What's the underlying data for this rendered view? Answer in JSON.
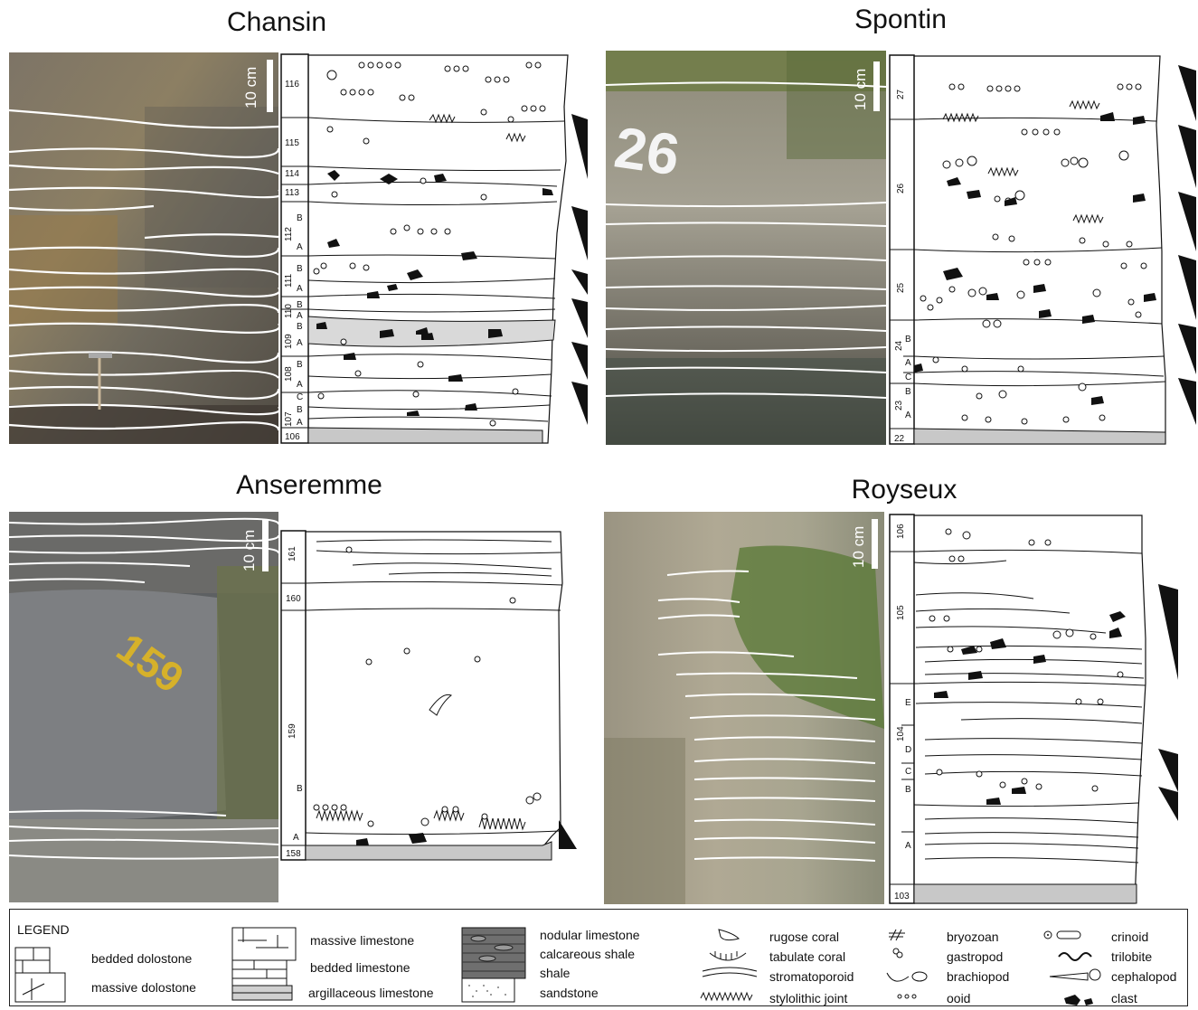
{
  "panels": [
    {
      "name": "Chansin",
      "scale": "10 cm",
      "beds": [
        "116",
        "115",
        "114",
        "113",
        "112",
        "B",
        "A",
        "111",
        "B",
        "A",
        "110",
        "B",
        "A",
        "109",
        "B",
        "A",
        "108",
        "B",
        "A",
        "107",
        "C",
        "B",
        "A",
        "106"
      ]
    },
    {
      "name": "Spontin",
      "scale": "10 cm",
      "photo_label": "26",
      "beds": [
        "27",
        "26",
        "25",
        "24",
        "B",
        "A",
        "C",
        "B",
        "23",
        "A",
        "22"
      ]
    },
    {
      "name": "Anseremme",
      "scale": "10 cm",
      "photo_label": "159",
      "beds": [
        "161",
        "160",
        "159",
        "B",
        "A",
        "158"
      ]
    },
    {
      "name": "Royseux",
      "scale": "10 cm",
      "beds": [
        "106",
        "105",
        "E",
        "104",
        "D",
        "C",
        "B",
        "A",
        "103"
      ]
    }
  ],
  "legend": {
    "title": "LEGEND",
    "rock_types": [
      "bedded dolostone",
      "massive dolostone",
      "massive limestone",
      "bedded limestone",
      "argillaceous limestone",
      "nodular limestone",
      "calcareous shale",
      "shale",
      "sandstone"
    ],
    "fossils": [
      "rugose coral",
      "tabulate coral",
      "stromatoporoid",
      "stylolithic joint",
      "bryozoan",
      "gastropod",
      "brachiopod",
      "ooid",
      "crinoid",
      "trilobite",
      "cephalopod",
      "clast"
    ]
  },
  "colors": {
    "shaded_bed": "#d9d9d9",
    "base_bed": "#c8c8c8",
    "ink": "#111111"
  }
}
